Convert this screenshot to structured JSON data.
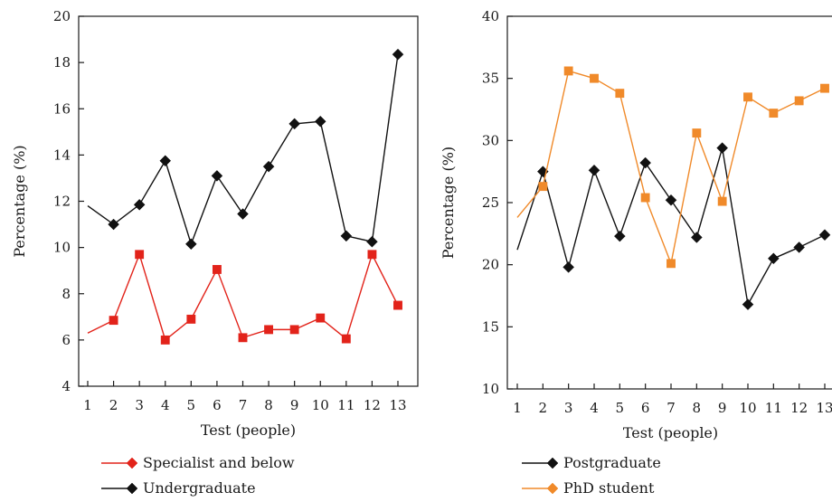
{
  "chart_data": [
    {
      "type": "line",
      "xlabel": "Test (people)",
      "ylabel": "Percentage (%)",
      "x": [
        1,
        2,
        3,
        4,
        5,
        6,
        7,
        8,
        9,
        10,
        11,
        12,
        13
      ],
      "xticks": [
        "1",
        "2",
        "3",
        "4",
        "5",
        "6",
        "7",
        "8",
        "9",
        "10",
        "11",
        "12",
        "13"
      ],
      "ylim": [
        4,
        20
      ],
      "yticks": [
        "4",
        "6",
        "8",
        "10",
        "12",
        "14",
        "16",
        "18",
        "20"
      ],
      "legend_position": "bottom",
      "series": [
        {
          "name": "Specialist and below",
          "color": "#e2231a",
          "marker": "square",
          "values": [
            6.3,
            6.85,
            9.7,
            6.0,
            6.9,
            9.05,
            6.1,
            6.45,
            6.45,
            6.95,
            6.05,
            9.7,
            7.5
          ]
        },
        {
          "name": "Undergraduate",
          "color": "#111111",
          "marker": "diamond",
          "values": [
            11.8,
            11.0,
            11.85,
            13.75,
            10.15,
            13.1,
            11.45,
            13.5,
            15.35,
            15.45,
            10.5,
            10.25,
            18.35
          ]
        }
      ]
    },
    {
      "type": "line",
      "xlabel": "Test (people)",
      "ylabel": "Percentage (%)",
      "x": [
        1,
        2,
        3,
        4,
        5,
        6,
        7,
        8,
        9,
        10,
        11,
        12,
        13
      ],
      "xticks": [
        "1",
        "2",
        "3",
        "4",
        "5",
        "6",
        "7",
        "8",
        "9",
        "10",
        "11",
        "12",
        "13"
      ],
      "ylim": [
        10,
        40
      ],
      "yticks": [
        "10",
        "15",
        "20",
        "25",
        "30",
        "35",
        "40"
      ],
      "legend_position": "bottom",
      "series": [
        {
          "name": "Postgraduate",
          "color": "#111111",
          "marker": "diamond",
          "values": [
            21.2,
            27.5,
            19.8,
            27.6,
            22.3,
            28.2,
            25.2,
            22.2,
            29.4,
            16.8,
            20.5,
            21.4,
            22.4
          ]
        },
        {
          "name": "PhD student",
          "color": "#f08a2a",
          "marker": "square",
          "values": [
            23.8,
            26.3,
            35.6,
            35.0,
            33.8,
            25.4,
            20.1,
            30.6,
            25.1,
            33.5,
            32.2,
            33.2,
            34.2
          ]
        }
      ]
    }
  ]
}
